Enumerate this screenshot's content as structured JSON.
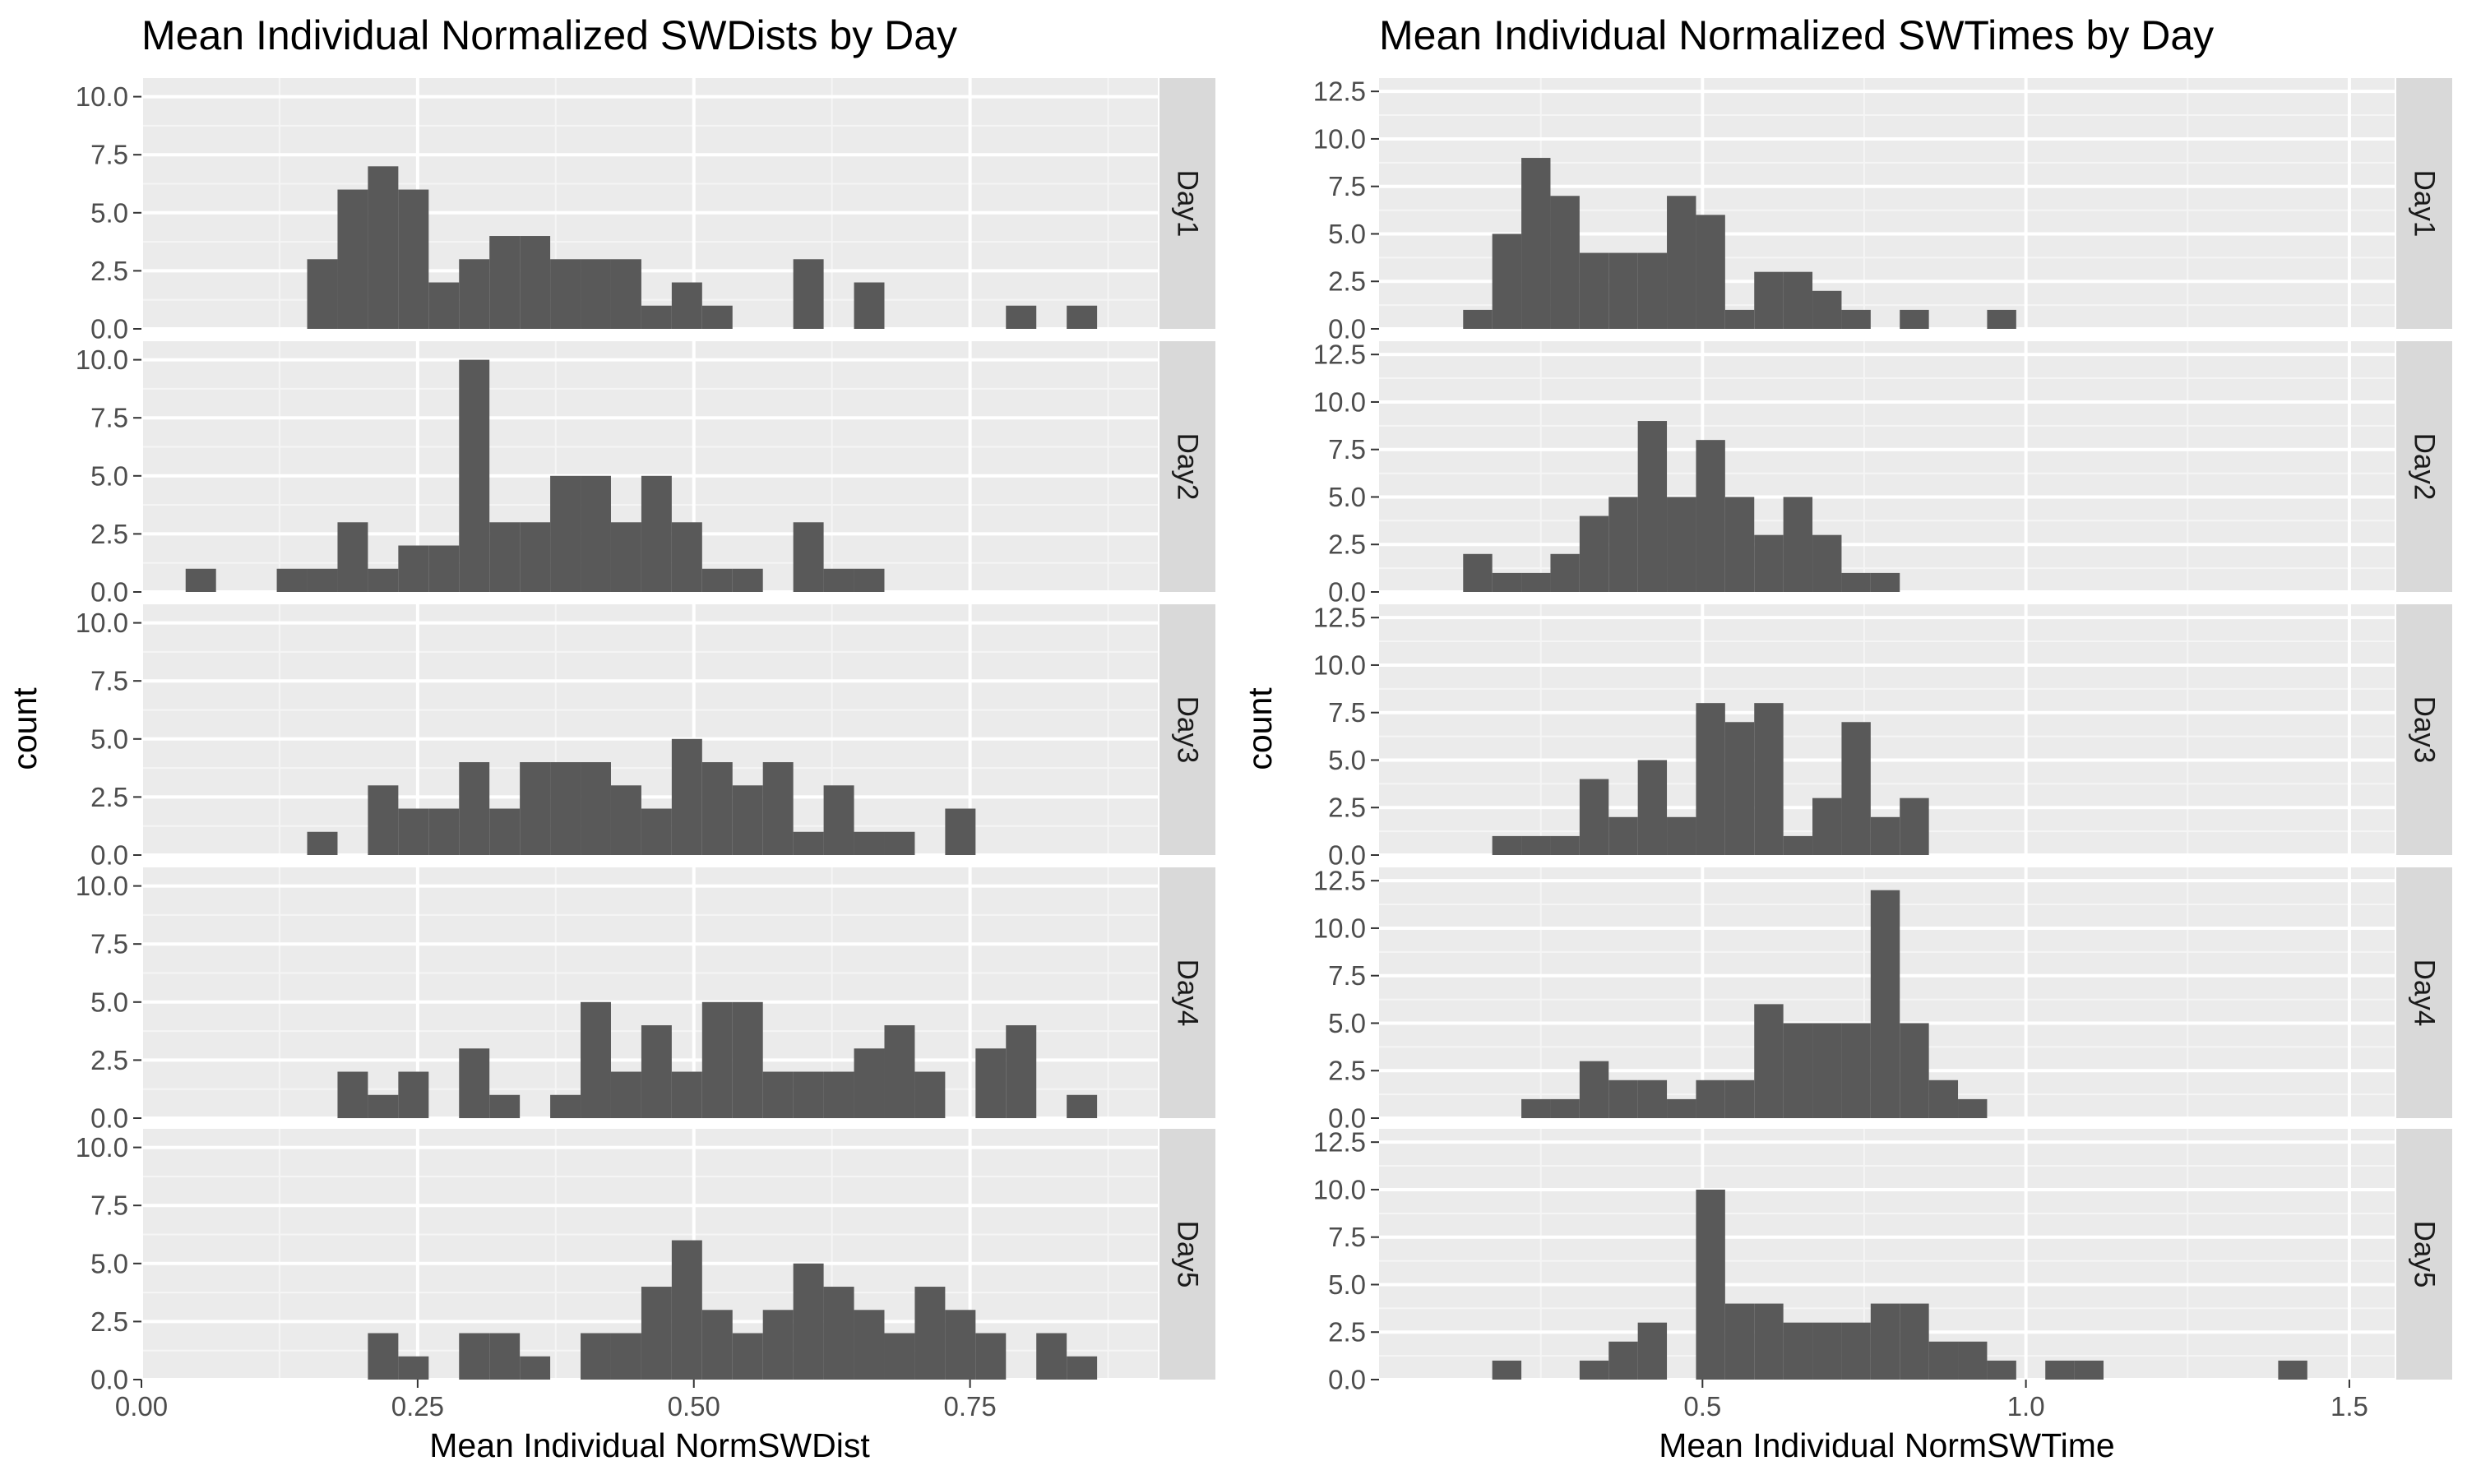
{
  "chart_data": [
    {
      "type": "bar",
      "subtype": "faceted-histogram",
      "title": "Mean Individual Normalized SWDists by Day",
      "xlabel": "Mean Individual NormSWDist",
      "ylabel": "count",
      "xlim": [
        0.0,
        0.92
      ],
      "ylim": [
        0,
        10.8
      ],
      "x_ticks": [
        0.0,
        0.25,
        0.5,
        0.75
      ],
      "x_tick_labels": [
        "0.00",
        "0.25",
        "0.50",
        "0.75"
      ],
      "y_ticks": [
        0,
        2.5,
        5,
        7.5,
        10
      ],
      "y_tick_labels": [
        "0.0",
        "2.5",
        "5.0",
        "7.5",
        "10.0"
      ],
      "bin_start": 0.04,
      "bin_width": 0.0275,
      "grid": true,
      "panel_background": "#ebebeb",
      "bar_color": "#595959",
      "strip_color": "#d9d9d9",
      "facets": [
        {
          "label": "Day1",
          "counts": [
            0,
            0,
            0,
            0,
            3,
            6,
            7,
            6,
            2,
            3,
            4,
            4,
            3,
            3,
            3,
            1,
            2,
            1,
            0,
            0,
            3,
            0,
            2,
            0,
            0,
            0,
            0,
            1,
            0,
            1
          ]
        },
        {
          "label": "Day2",
          "counts": [
            1,
            0,
            0,
            1,
            1,
            3,
            1,
            2,
            2,
            10,
            3,
            3,
            5,
            5,
            3,
            5,
            3,
            1,
            1,
            0,
            3,
            1,
            1,
            0,
            0,
            0,
            0,
            0,
            0,
            0
          ]
        },
        {
          "label": "Day3",
          "counts": [
            0,
            0,
            0,
            0,
            1,
            0,
            3,
            2,
            2,
            4,
            2,
            4,
            4,
            4,
            3,
            2,
            5,
            4,
            3,
            4,
            1,
            3,
            1,
            1,
            0,
            2,
            0,
            0,
            0,
            0
          ]
        },
        {
          "label": "Day4",
          "counts": [
            0,
            0,
            0,
            0,
            0,
            2,
            1,
            2,
            0,
            3,
            1,
            0,
            1,
            5,
            2,
            4,
            2,
            5,
            5,
            2,
            2,
            2,
            3,
            4,
            2,
            0,
            3,
            4,
            0,
            1
          ]
        },
        {
          "label": "Day5",
          "counts": [
            0,
            0,
            0,
            0,
            0,
            0,
            2,
            1,
            0,
            2,
            2,
            1,
            0,
            2,
            2,
            4,
            6,
            3,
            2,
            3,
            5,
            4,
            3,
            2,
            4,
            3,
            2,
            0,
            2,
            1
          ]
        }
      ]
    },
    {
      "type": "bar",
      "subtype": "faceted-histogram",
      "title": "Mean Individual Normalized SWTimes by Day",
      "xlabel": "Mean Individual NormSWTime",
      "ylabel": "count",
      "xlim": [
        0.0,
        1.57
      ],
      "ylim": [
        0,
        13.2
      ],
      "x_ticks": [
        0.5,
        1.0,
        1.5
      ],
      "x_tick_labels": [
        "0.5",
        "1.0",
        "1.5"
      ],
      "y_ticks": [
        0,
        2.5,
        5,
        7.5,
        10,
        12.5
      ],
      "y_tick_labels": [
        "0.0",
        "2.5",
        "5.0",
        "7.5",
        "10.0",
        "12.5"
      ],
      "bin_start": 0.13,
      "bin_width": 0.045,
      "grid": true,
      "panel_background": "#ebebeb",
      "bar_color": "#595959",
      "strip_color": "#d9d9d9",
      "facets": [
        {
          "label": "Day1",
          "counts": [
            1,
            5,
            9,
            7,
            4,
            4,
            4,
            7,
            6,
            1,
            3,
            3,
            2,
            1,
            0,
            1,
            0,
            0,
            1,
            0,
            0,
            0,
            0,
            0,
            0,
            0,
            0,
            0,
            0
          ]
        },
        {
          "label": "Day2",
          "counts": [
            2,
            1,
            1,
            2,
            4,
            5,
            9,
            5,
            8,
            5,
            3,
            5,
            3,
            1,
            1,
            0,
            0,
            0,
            0,
            0,
            0,
            0,
            0,
            0,
            0,
            0,
            0,
            0,
            0
          ]
        },
        {
          "label": "Day3",
          "counts": [
            0,
            1,
            1,
            1,
            4,
            2,
            5,
            2,
            8,
            7,
            8,
            1,
            3,
            7,
            2,
            3,
            0,
            0,
            0,
            0,
            0,
            0,
            0,
            0,
            0,
            0,
            0,
            0,
            0
          ]
        },
        {
          "label": "Day4",
          "counts": [
            0,
            0,
            1,
            1,
            3,
            2,
            2,
            1,
            2,
            2,
            6,
            5,
            5,
            5,
            12,
            5,
            2,
            1,
            0,
            0,
            0,
            0,
            0,
            0,
            0,
            0,
            0,
            0,
            0
          ]
        },
        {
          "label": "Day5",
          "counts": [
            0,
            1,
            0,
            0,
            1,
            2,
            3,
            0,
            10,
            4,
            4,
            3,
            3,
            3,
            4,
            4,
            2,
            2,
            1,
            0,
            1,
            1,
            0,
            0,
            0,
            0,
            0,
            0,
            1
          ]
        }
      ]
    }
  ]
}
